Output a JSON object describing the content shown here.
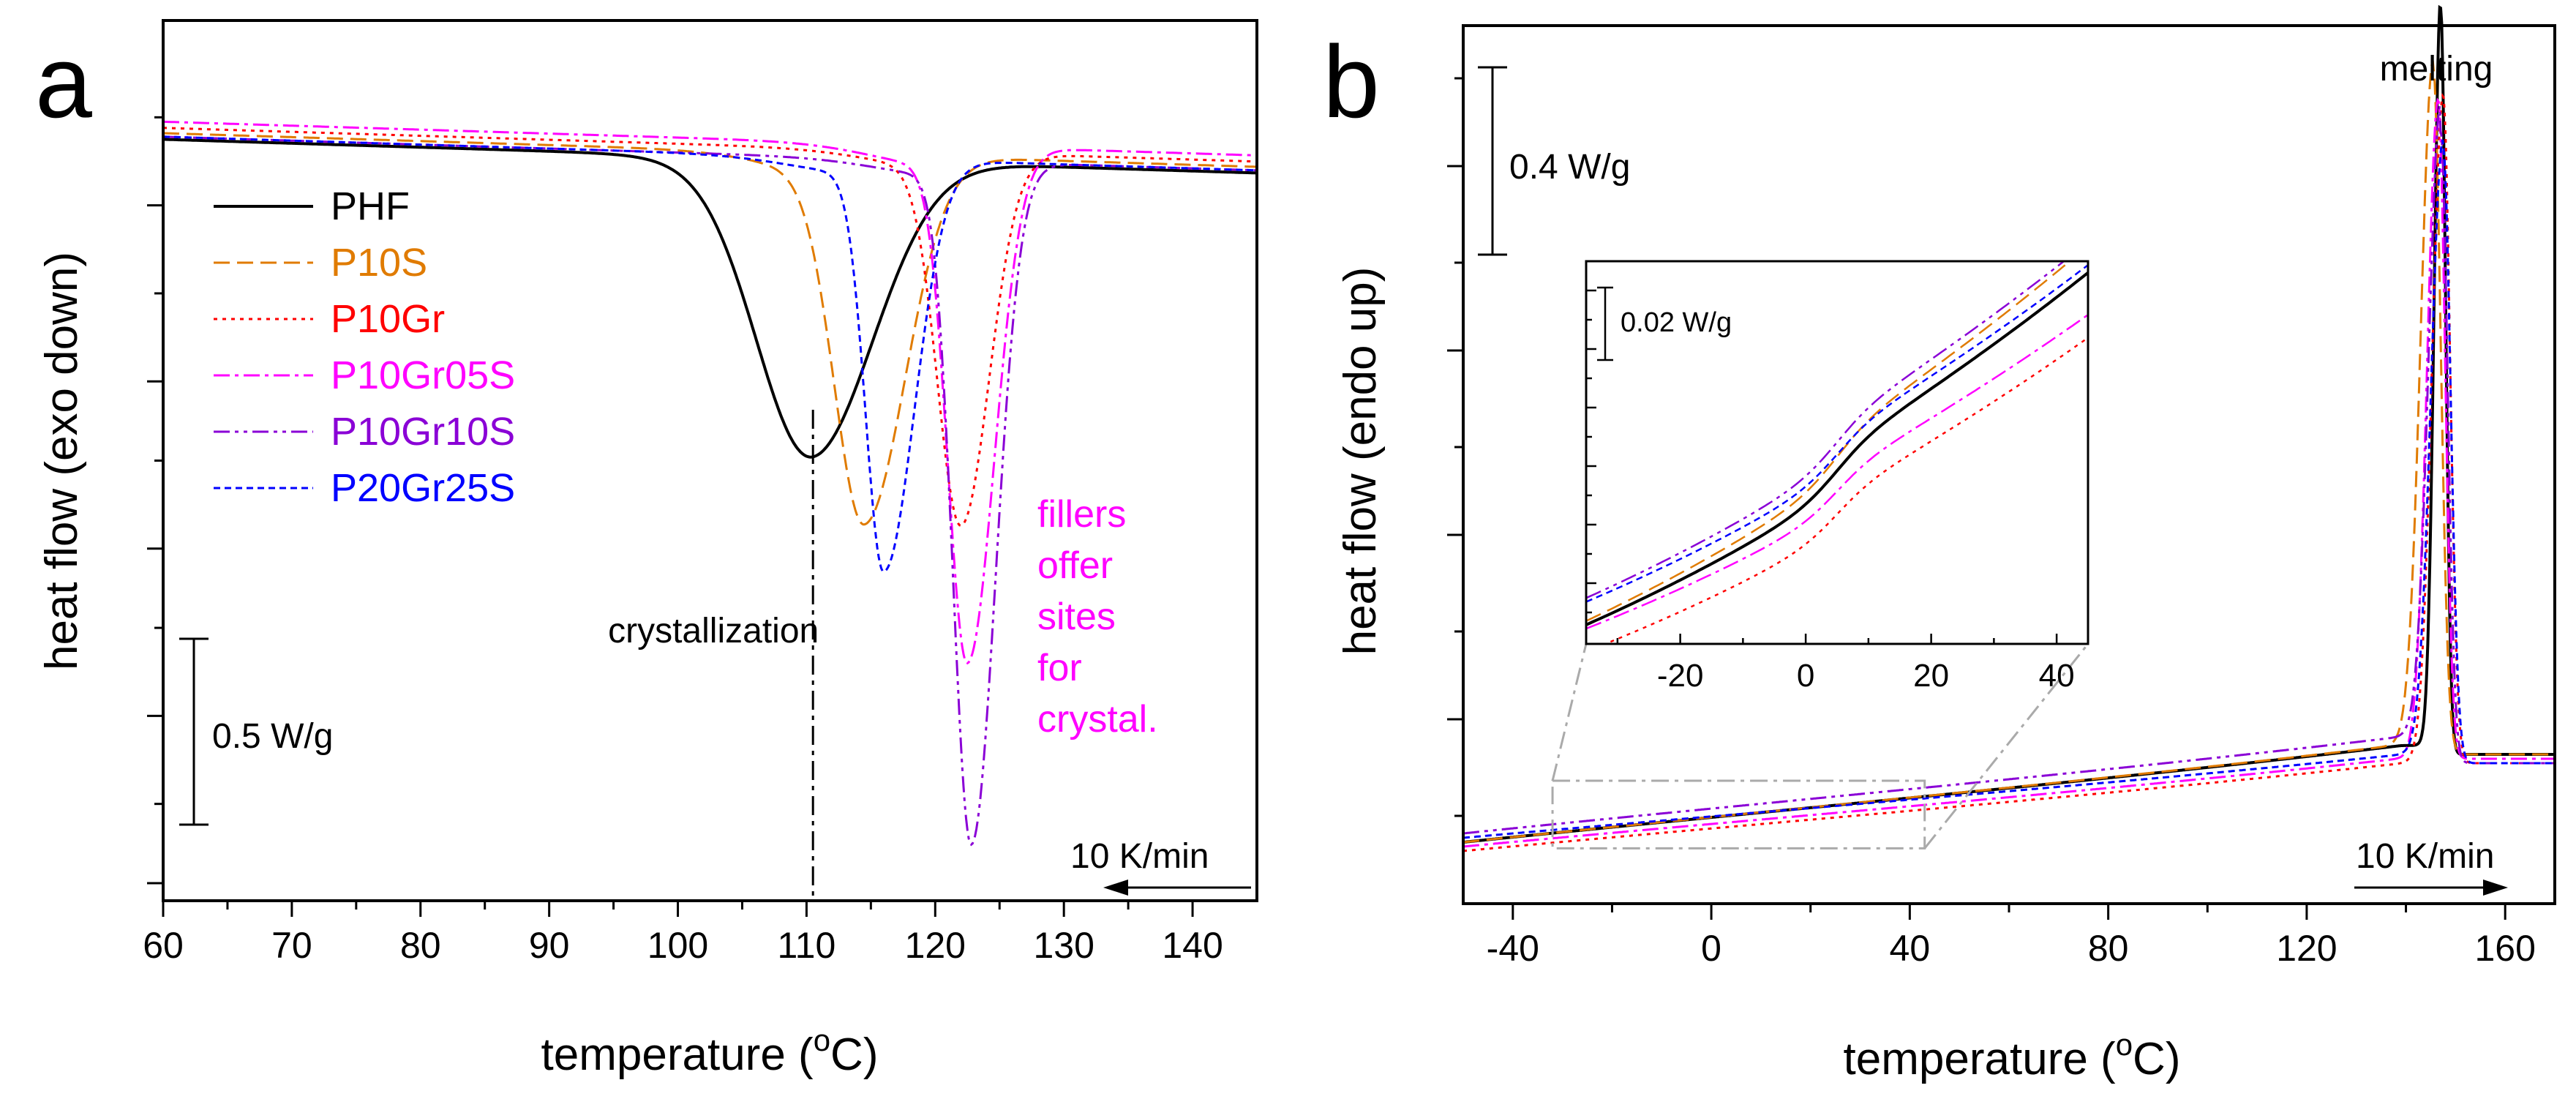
{
  "colors": {
    "PHF": "#000000",
    "P10S": "#e07b00",
    "P10Gr": "#ff0000",
    "P10Gr05S": "#ff00ff",
    "P10Gr10S": "#8a00d6",
    "P20Gr25S": "#0000ff",
    "magenta_text": "#ff00ff",
    "gray": "#aaaaaa"
  },
  "chart_data": [
    {
      "type": "line",
      "panel_letter": "a",
      "xlabel_main": "temperature (",
      "xlabel_sup": "o",
      "xlabel_tail": "C)",
      "ylabel": "heat flow (exo down)",
      "xlim": [
        60,
        145
      ],
      "ylim": [
        0,
        1.0
      ],
      "xticks": [
        60,
        70,
        80,
        90,
        100,
        110,
        120,
        130,
        140
      ],
      "y_major_ticks": [
        0.02,
        0.21,
        0.4,
        0.59,
        0.79
      ],
      "y_minor_ticks": [
        0.11,
        0.31,
        0.5,
        0.69,
        0.89
      ],
      "legend": [
        "PHF",
        "P10S",
        "P10Gr",
        "P10Gr05S",
        "P10Gr10S",
        "P20Gr25S"
      ],
      "series": [
        {
          "name": "PHF",
          "baseline": 0.865,
          "shift": 0.03,
          "peak_x": 110.5,
          "depth": 0.323,
          "width": 4.2,
          "width_right": 4.8
        },
        {
          "name": "P10S",
          "baseline": 0.872,
          "shift": 0.03,
          "peak_x": 114.5,
          "depth": 0.405,
          "width": 2.3,
          "width_right": 3.2
        },
        {
          "name": "P10Gr",
          "baseline": 0.878,
          "shift": 0.022,
          "peak_x": 122.0,
          "depth": 0.413,
          "width": 1.8,
          "width_right": 2.2
        },
        {
          "name": "P10Gr05S",
          "baseline": 0.885,
          "shift": 0.03,
          "peak_x": 122.5,
          "depth": 0.572,
          "width": 1.5,
          "width_right": 2.1
        },
        {
          "name": "P10Gr10S",
          "baseline": 0.868,
          "shift": 0.022,
          "peak_x": 122.8,
          "depth": 0.765,
          "width": 1.4,
          "width_right": 1.9
        },
        {
          "name": "P20Gr25S",
          "baseline": 0.868,
          "shift": 0.022,
          "peak_x": 116.0,
          "depth": 0.458,
          "width": 1.4,
          "width_right": 2.4
        }
      ],
      "annotations": {
        "crystallization": "crystallization",
        "crystallization_x": 110.5,
        "fillers": [
          "fillers",
          "offer",
          "sites",
          "for",
          "crystal."
        ],
        "scale_bar": "0.5 W/g",
        "scale_bar_value": 0.21,
        "rate": "10 K/min"
      }
    },
    {
      "type": "line",
      "panel_letter": "b",
      "xlabel_main": "temperature (",
      "xlabel_sup": "o",
      "xlabel_tail": "C)",
      "ylabel": "heat flow (endo up)",
      "xlim": [
        -50,
        170
      ],
      "ylim": [
        0,
        1.0
      ],
      "xticks": [
        -40,
        0,
        40,
        80,
        120,
        160
      ],
      "y_major_ticks": [
        0.21,
        0.42,
        0.63,
        0.84
      ],
      "y_minor_ticks": [
        0.1,
        0.31,
        0.52,
        0.73,
        0.94
      ],
      "series": [
        {
          "name": "PHF",
          "start": 0.07,
          "end": 0.18,
          "peak_x": 147.0,
          "peak_height": 0.85,
          "width": 1.3,
          "width_right": 1.0,
          "after": 0.17
        },
        {
          "name": "P10S",
          "start": 0.07,
          "end": 0.18,
          "peak_x": 145.5,
          "peak_height": 0.78,
          "width": 2.5,
          "width_right": 1.5,
          "after": 0.17
        },
        {
          "name": "P10Gr",
          "start": 0.06,
          "end": 0.16,
          "peak_x": 147.5,
          "peak_height": 0.76,
          "width": 2.2,
          "width_right": 1.4,
          "after": 0.16
        },
        {
          "name": "P10Gr05S",
          "start": 0.065,
          "end": 0.165,
          "peak_x": 146.5,
          "peak_height": 0.75,
          "width": 2.2,
          "width_right": 1.4,
          "after": 0.165
        },
        {
          "name": "P10Gr10S",
          "start": 0.08,
          "end": 0.19,
          "peak_x": 147.0,
          "peak_height": 0.72,
          "width": 2.4,
          "width_right": 1.4,
          "after": 0.16
        },
        {
          "name": "P20Gr25S",
          "start": 0.075,
          "end": 0.17,
          "peak_x": 147.5,
          "peak_height": 0.7,
          "width": 2.4,
          "width_right": 1.5,
          "after": 0.16
        }
      ],
      "inset": {
        "xlim": [
          -35,
          45
        ],
        "xticks": [
          -20,
          0,
          20,
          40
        ],
        "scale_bar": "0.02 W/g",
        "source_box_x": [
          -32,
          43
        ],
        "source_box_y": [
          0.063,
          0.14
        ],
        "series": [
          {
            "name": "P10Gr10S",
            "y_start": 0.12,
            "y_end": 1.05
          },
          {
            "name": "P10S",
            "y_start": 0.06,
            "y_end": 1.04
          },
          {
            "name": "P20Gr25S",
            "y_start": 0.11,
            "y_end": 0.99
          },
          {
            "name": "PHF",
            "y_start": 0.05,
            "y_end": 0.97
          },
          {
            "name": "P10Gr05S",
            "y_start": 0.04,
            "y_end": 0.86
          },
          {
            "name": "P10Gr",
            "y_start": -0.02,
            "y_end": 0.8
          }
        ]
      },
      "annotations": {
        "melting": "melting",
        "scale_bar": "0.4 W/g",
        "rate": "10 K/min"
      }
    }
  ]
}
